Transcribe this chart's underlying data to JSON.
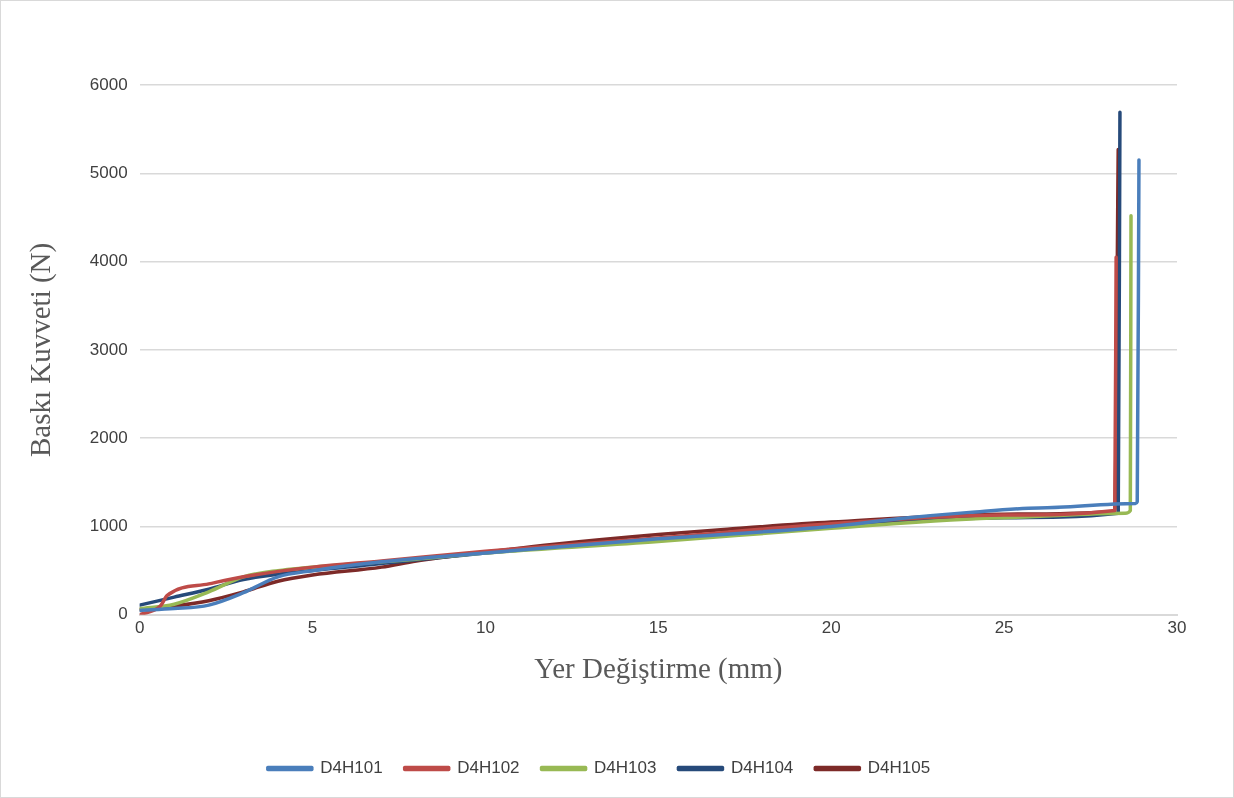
{
  "chart_data": {
    "type": "line",
    "xlabel": "Yer Değiştirme (mm)",
    "ylabel": "Baskı Kuvveti (N)",
    "xlim": [
      0,
      30
    ],
    "xticks": [
      0,
      5,
      10,
      15,
      20,
      25,
      30
    ],
    "ylim": [
      0,
      6000
    ],
    "yticks": [
      0,
      1000,
      2000,
      3000,
      4000,
      5000,
      6000
    ],
    "grid": "y",
    "legend": "bottom",
    "marker": "none",
    "line_style": "solid",
    "series": [
      {
        "name": "D4H101",
        "color": "#4a7ebb",
        "x": [
          0,
          1,
          2,
          3,
          4,
          5,
          7,
          10,
          15,
          20,
          22,
          24,
          26,
          28.8,
          28.85,
          28.9
        ],
        "values": [
          50,
          70,
          110,
          250,
          430,
          500,
          600,
          700,
          860,
          1000,
          1090,
          1160,
          1210,
          1260,
          1280,
          5150
        ]
      },
      {
        "name": "D4H102",
        "color": "#be4b48",
        "x": [
          0,
          0.6,
          0.8,
          2,
          3,
          5,
          7,
          10,
          15,
          20,
          25,
          28.2,
          28.24
        ],
        "values": [
          0,
          100,
          220,
          350,
          430,
          540,
          610,
          720,
          870,
          1030,
          1130,
          1180,
          4050
        ]
      },
      {
        "name": "D4H103",
        "color": "#98b954",
        "x": [
          0,
          1,
          2,
          3,
          4,
          6,
          8,
          10,
          15,
          20,
          25,
          28.5,
          28.65,
          28.67
        ],
        "values": [
          70,
          120,
          260,
          430,
          500,
          570,
          630,
          700,
          830,
          980,
          1100,
          1150,
          1180,
          4520
        ]
      },
      {
        "name": "D4H104",
        "color": "#264a7a",
        "x": [
          0,
          1,
          2,
          3,
          4,
          6,
          10,
          15,
          20,
          25,
          28.3,
          28.35
        ],
        "values": [
          110,
          200,
          290,
          400,
          460,
          540,
          700,
          860,
          1010,
          1100,
          1150,
          5690
        ]
      },
      {
        "name": "D4H105",
        "color": "#7d2a28",
        "x": [
          0,
          1,
          2,
          3,
          4,
          5,
          7,
          8,
          10,
          12,
          15,
          17,
          20,
          25,
          28.2,
          28.3
        ],
        "values": [
          60,
          100,
          160,
          260,
          380,
          450,
          540,
          610,
          710,
          800,
          910,
          970,
          1050,
          1140,
          1170,
          5270
        ]
      }
    ]
  }
}
